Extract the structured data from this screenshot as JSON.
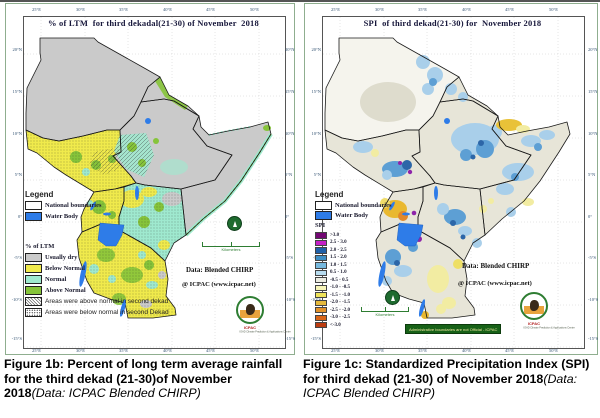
{
  "left_map": {
    "title": "% of LTM  for third dekadal(21-30) of November  2018",
    "x_ticks": [
      "25°E",
      "30°E",
      "35°E",
      "40°E",
      "45°E",
      "50°E"
    ],
    "y_ticks": [
      "20°N",
      "15°N",
      "10°N",
      "5°N",
      "0°",
      "-5°S",
      "-10°S",
      "-15°S"
    ],
    "legend": {
      "header": "Legend",
      "boundary_label": "National boundaries",
      "water_label": "Water Body",
      "water_color": "#2e7ce8",
      "section_header": "% of LTM",
      "classes": [
        {
          "label": "Usually dry",
          "color": "#cacaca"
        },
        {
          "label": "Below Normal",
          "color": "#f0ea4c"
        },
        {
          "label": "Normal",
          "color": "#9fe9cf"
        },
        {
          "label": "Above Normal",
          "color": "#86c43a"
        }
      ],
      "hatch_label": "Areas were above normal in second dekad",
      "dots_label": "Areas were below normal in second Dekad"
    },
    "data_source": "Data: Blended CHIRP",
    "attribution": "@ ICPAC (www.icpac.net)",
    "scale_label": "Kilometers",
    "logo_name": "ICPAC",
    "logo_subtitle": "IGAD Climate Prediction & Applications Centre"
  },
  "right_map": {
    "title": "SPI  of third dekad(21-30) for  November 2018",
    "x_ticks": [
      "25°E",
      "30°E",
      "35°E",
      "40°E",
      "45°E",
      "50°E"
    ],
    "y_ticks": [
      "20°N",
      "15°N",
      "10°N",
      "5°N",
      "0°",
      "-5°S",
      "-10°S",
      "-15°S"
    ],
    "legend": {
      "header": "Legend",
      "boundary_label": "National boundaries",
      "water_label": "Water Body",
      "water_color": "#2e7ce8",
      "section_header": "SPI",
      "classes": [
        {
          "label": ">3.0",
          "color": "#730873"
        },
        {
          "label": "2.5 - 3.0",
          "color": "#c520c5"
        },
        {
          "label": "2.0 - 2.5",
          "color": "#2060a8"
        },
        {
          "label": "1.5 - 2.0",
          "color": "#3e8ec4"
        },
        {
          "label": "1.0 - 1.5",
          "color": "#77b9de"
        },
        {
          "label": "0.5 - 1.0",
          "color": "#b8dcef"
        },
        {
          "label": "-0.5 - 0.5",
          "color": "#ededE2"
        },
        {
          "label": "-1.0 - -0.5",
          "color": "#f7f5b8"
        },
        {
          "label": "-1.5 - -1.0",
          "color": "#efe35a"
        },
        {
          "label": "-2.0 - -1.5",
          "color": "#e5b93c"
        },
        {
          "label": "-2.5 - -2.0",
          "color": "#e2922b"
        },
        {
          "label": "-3.0 - -2.5",
          "color": "#d96518"
        },
        {
          "label": "<-3.0",
          "color": "#bc3c10"
        }
      ]
    },
    "data_source": "Data: Blended CHIRP",
    "attribution": "@ ICPAC (www.icpac.net)",
    "scale_label": "Kilometers",
    "banner": "Administrative boundaries are not Official - ICPAC",
    "logo_name": "ICPAC",
    "logo_subtitle": "IGAD Climate Prediction & Applications Centre"
  },
  "captions": {
    "left_bold": "Figure 1b: Percent of long term average rainfall for the third  dekad (21-30)of November 2018",
    "left_italic": "(Data: ICPAC Blended CHIRP)",
    "right_bold": "Figure 1c: Standardized Precipitation Index (SPI) for third dekad (21-30) of November 2018",
    "right_italic": "(Data: ICPAC Blended CHIRP)"
  }
}
